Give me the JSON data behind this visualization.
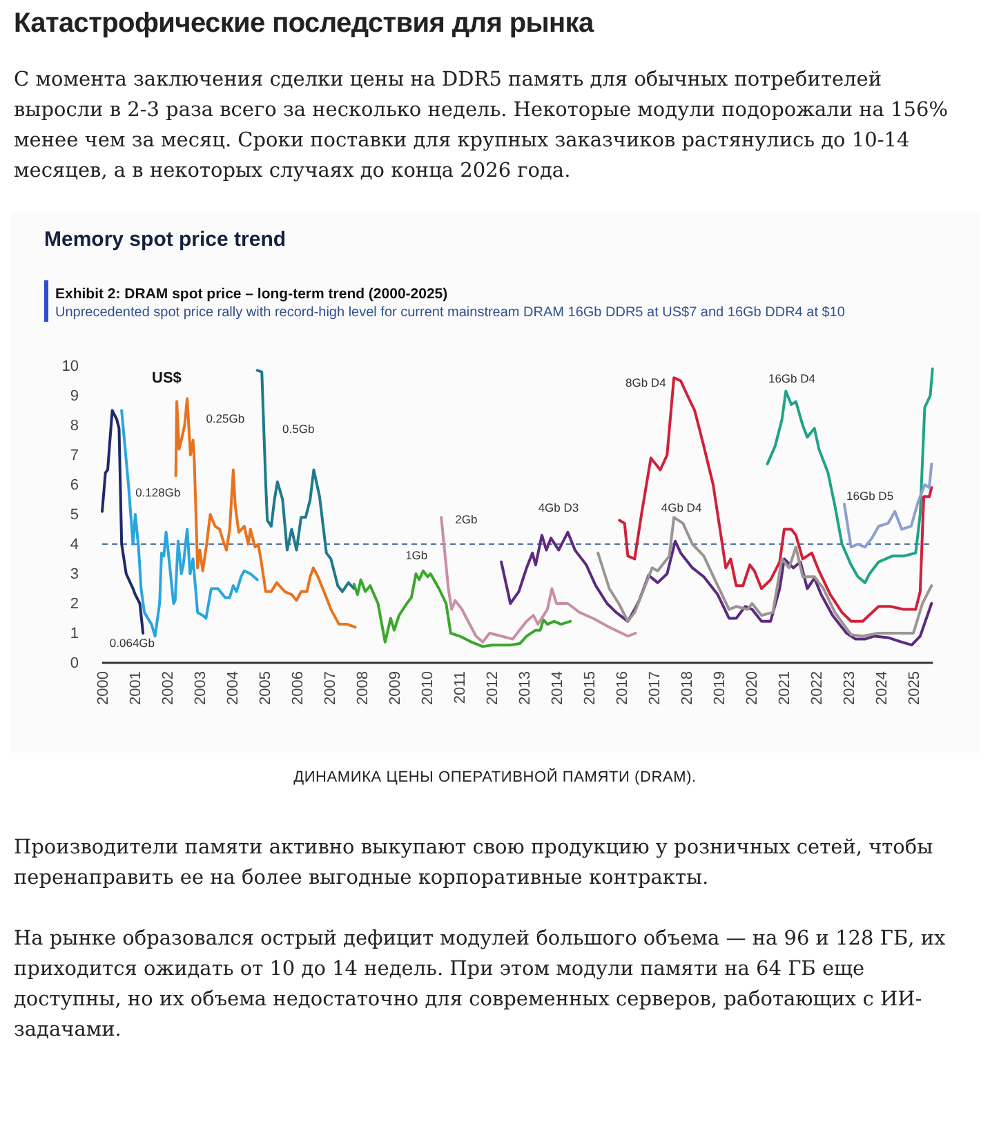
{
  "chart_data": {
    "type": "line",
    "title": "Exhibit 2: DRAM spot price – long-term trend (2000-2025)",
    "subtitle": "Unprecedented spot price rally with record-high level for current mainstream DRAM 16Gb DDR5 at US$7 and 16Gb DDR4 at $10",
    "ylabel": "US$",
    "annotations": [
      "Катастрофические последствия для рынка",
      "С момента заключения сделки цены на DDR5 память для обычных потребителей выросли в 2-3 раза всего за несколько недель. Некоторые модули подорожали на 156% менее чем за месяц. Сроки поставки для крупных заказчиков растянулись до 10-14 месяцев, а в некоторых случаях до конца 2026 года.",
      "Memory spot price trend",
      "ДИНАМИКА ЦЕНЫ ОПЕРАТИВНОЙ ПАМЯТИ (DRAM).",
      "Производители памяти активно выкупают свою продукцию у розничных сетей, чтобы перенаправить ее на более выгодные корпоративные контракты.",
      "На рынке образовался острый дефицит модулей большого объема — на 96 и 128 ГБ, их приходится ожидать от 10 до 14 недель. При этом модули памяти на 64 ГБ еще доступны, но их объема недостаточно для современных серверов, работающих с ИИ-задачами."
    ],
    "xlim": [
      2000,
      2025.6
    ],
    "xticks": [
      2000,
      2001,
      2002,
      2003,
      2004,
      2005,
      2006,
      2007,
      2008,
      2009,
      2010,
      2011,
      2012,
      2013,
      2014,
      2015,
      2016,
      2017,
      2018,
      2019,
      2020,
      2021,
      2022,
      2023,
      2024,
      2025
    ],
    "ylim": [
      0,
      10
    ],
    "yticks": [
      0,
      1,
      2,
      3,
      4,
      5,
      6,
      7,
      8,
      9,
      10
    ],
    "grid": false,
    "legend": false,
    "line_style": "solid",
    "marker": "none",
    "ref_lines": [
      {
        "axis": "y",
        "value": 4,
        "color": "#4a6fa5",
        "line_style": "dashed"
      }
    ],
    "series": [
      {
        "name": "0.064Gb",
        "color": "#1f2a6b",
        "x": [
          2000.0,
          2000.1,
          2000.17,
          2000.31,
          2000.45,
          2000.52,
          2000.6,
          2000.74,
          2000.95,
          2001.02,
          2001.16,
          2001.26
        ],
        "values": [
          5.1,
          6.4,
          6.5,
          8.5,
          8.2,
          7.9,
          4.0,
          3.0,
          2.5,
          2.3,
          2.0,
          1.0
        ]
      },
      {
        "name": "0.128Gb",
        "color": "#2aa6df",
        "x": [
          2000.6,
          2000.81,
          2000.95,
          2001.02,
          2001.12,
          2001.2,
          2001.3,
          2001.52,
          2001.63,
          2001.77,
          2001.83,
          2001.9,
          2001.97,
          2002.06,
          2002.2,
          2002.25,
          2002.34,
          2002.44,
          2002.5,
          2002.62,
          2002.71,
          2002.8,
          2002.94,
          2003.1,
          2003.2,
          2003.36,
          2003.57,
          2003.79,
          2003.93,
          2004.04,
          2004.14,
          2004.28,
          2004.38,
          2004.57,
          2004.78
        ],
        "values": [
          8.5,
          6.0,
          4.0,
          5.0,
          3.9,
          2.5,
          1.7,
          1.3,
          0.9,
          2.0,
          3.7,
          3.6,
          4.4,
          3.5,
          2.0,
          2.1,
          4.1,
          3.0,
          3.3,
          4.5,
          3.0,
          3.5,
          1.7,
          1.6,
          1.5,
          2.5,
          2.5,
          2.2,
          2.2,
          2.6,
          2.4,
          2.9,
          3.1,
          3.0,
          2.8
        ]
      },
      {
        "name": "0.25Gb",
        "color": "#e8731f",
        "x": [
          2002.27,
          2002.3,
          2002.37,
          2002.44,
          2002.54,
          2002.62,
          2002.72,
          2002.8,
          2002.84,
          2002.94,
          2003.01,
          2003.1,
          2003.22,
          2003.33,
          2003.48,
          2003.62,
          2003.76,
          2003.83,
          2003.93,
          2004.04,
          2004.1,
          2004.21,
          2004.38,
          2004.5,
          2004.57,
          2004.71,
          2004.81,
          2004.89,
          2005.04,
          2005.21,
          2005.38,
          2005.63,
          2005.84,
          2005.99,
          2006.13,
          2006.31,
          2006.41,
          2006.51,
          2006.65,
          2006.91,
          2007.05,
          2007.3,
          2007.55,
          2007.8
        ],
        "values": [
          6.3,
          8.8,
          7.2,
          7.5,
          8.0,
          8.9,
          7.0,
          7.5,
          6.8,
          3.2,
          3.8,
          3.1,
          4.0,
          5.0,
          4.6,
          4.5,
          4.0,
          3.8,
          4.5,
          6.5,
          5.3,
          4.4,
          4.6,
          4.0,
          4.5,
          3.9,
          4.0,
          3.5,
          2.4,
          2.4,
          2.7,
          2.4,
          2.3,
          2.1,
          2.4,
          2.4,
          2.9,
          3.2,
          2.9,
          2.2,
          1.8,
          1.3,
          1.3,
          1.2
        ]
      },
      {
        "name": "0.5Gb",
        "color": "#1f7a8c",
        "x": [
          2004.78,
          2004.92,
          2005.04,
          2005.09,
          2005.21,
          2005.31,
          2005.4,
          2005.56,
          2005.7,
          2005.84,
          2005.99,
          2006.13,
          2006.27,
          2006.41,
          2006.52,
          2006.7,
          2006.91,
          2007.05,
          2007.26,
          2007.4,
          2007.59,
          2007.76
        ],
        "values": [
          9.85,
          9.8,
          6.05,
          4.8,
          4.6,
          5.5,
          6.1,
          5.5,
          3.8,
          4.5,
          3.8,
          4.9,
          4.9,
          5.5,
          6.5,
          5.6,
          3.7,
          3.5,
          2.6,
          2.4,
          2.7,
          2.5
        ]
      },
      {
        "name": "1Gb",
        "color": "#3aa82b",
        "x": [
          2007.76,
          2007.87,
          2007.97,
          2008.11,
          2008.26,
          2008.5,
          2008.72,
          2008.89,
          2009.0,
          2009.15,
          2009.39,
          2009.53,
          2009.67,
          2009.77,
          2009.89,
          2010.03,
          2010.12,
          2010.38,
          2010.6,
          2010.74,
          2011.02,
          2011.38,
          2011.73,
          2012.01,
          2012.58,
          2012.87,
          2013.08,
          2013.36,
          2013.5,
          2013.6,
          2013.72,
          2013.93,
          2014.14,
          2014.43
        ],
        "values": [
          2.65,
          2.3,
          2.8,
          2.4,
          2.6,
          2.0,
          0.7,
          1.5,
          1.1,
          1.6,
          2.0,
          2.2,
          3.0,
          2.8,
          3.1,
          2.9,
          3.0,
          2.5,
          2.0,
          1.0,
          0.9,
          0.7,
          0.55,
          0.6,
          0.6,
          0.65,
          0.9,
          1.1,
          1.1,
          1.45,
          1.3,
          1.4,
          1.3,
          1.4
        ]
      },
      {
        "name": "2Gb",
        "color": "#c98fa6",
        "x": [
          2010.45,
          2010.67,
          2010.77,
          2010.88,
          2011.09,
          2011.23,
          2011.52,
          2011.73,
          2011.94,
          2012.3,
          2012.65,
          2013.08,
          2013.29,
          2013.43,
          2013.72,
          2013.86,
          2014.0,
          2014.35,
          2014.71,
          2015.13,
          2015.63,
          2016.2,
          2016.44
        ],
        "values": [
          4.9,
          2.5,
          1.8,
          2.1,
          1.8,
          1.5,
          0.9,
          0.7,
          1.0,
          0.9,
          0.8,
          1.4,
          1.6,
          1.3,
          1.8,
          2.5,
          2.0,
          2.0,
          1.7,
          1.5,
          1.2,
          0.9,
          1.0
        ]
      },
      {
        "name": "4Gb D3",
        "color": "#5b2a80",
        "x": [
          2012.3,
          2012.58,
          2012.84,
          2013.08,
          2013.26,
          2013.36,
          2013.55,
          2013.69,
          2013.83,
          2014.07,
          2014.35,
          2014.57,
          2014.92,
          2015.21,
          2015.56,
          2015.84,
          2016.2,
          2016.41,
          2016.55,
          2016.84,
          2017.12,
          2017.41,
          2017.66,
          2017.83,
          2018.19,
          2018.54,
          2018.97,
          2019.32,
          2019.54,
          2019.82,
          2020.03,
          2020.32,
          2020.6,
          2020.88,
          2021.02,
          2021.3,
          2021.52,
          2021.73,
          2021.95,
          2022.16,
          2022.51,
          2022.94,
          2023.22,
          2023.51,
          2023.79,
          2024.22,
          2024.64,
          2024.95,
          2025.21,
          2025.56
        ],
        "values": [
          3.4,
          2.0,
          2.4,
          3.2,
          3.7,
          3.3,
          4.3,
          3.8,
          4.2,
          3.8,
          4.4,
          3.8,
          3.3,
          2.6,
          2.0,
          1.7,
          1.4,
          1.8,
          2.1,
          2.95,
          2.7,
          3.0,
          4.1,
          3.7,
          3.2,
          2.9,
          2.3,
          1.5,
          1.5,
          1.9,
          1.8,
          1.4,
          1.4,
          2.5,
          3.5,
          3.2,
          3.4,
          2.5,
          2.85,
          2.3,
          1.6,
          1.0,
          0.8,
          0.8,
          0.9,
          0.85,
          0.7,
          0.6,
          0.9,
          2.0
        ]
      },
      {
        "name": "8Gb D4",
        "color": "#d0213a",
        "x": [
          2015.94,
          2016.1,
          2016.2,
          2016.41,
          2016.62,
          2016.91,
          2016.98,
          2017.2,
          2017.41,
          2017.62,
          2017.83,
          2018.04,
          2018.26,
          2018.54,
          2018.83,
          2019.04,
          2019.22,
          2019.37,
          2019.54,
          2019.75,
          2019.96,
          2020.1,
          2020.32,
          2020.6,
          2020.88,
          2021.02,
          2021.24,
          2021.38,
          2021.59,
          2021.87,
          2022.09,
          2022.44,
          2022.8,
          2023.08,
          2023.44,
          2023.93,
          2024.29,
          2024.71,
          2025.07,
          2025.21,
          2025.32,
          2025.49,
          2025.56
        ],
        "values": [
          4.8,
          4.7,
          3.6,
          3.5,
          5.0,
          6.9,
          6.8,
          6.5,
          7.0,
          9.6,
          9.5,
          9.0,
          8.5,
          7.3,
          6.0,
          4.5,
          3.2,
          3.5,
          2.6,
          2.6,
          3.3,
          3.1,
          2.5,
          2.8,
          3.4,
          4.5,
          4.5,
          4.3,
          3.5,
          3.7,
          3.1,
          2.3,
          1.7,
          1.4,
          1.4,
          1.9,
          1.9,
          1.8,
          1.8,
          2.4,
          5.6,
          5.6,
          5.9
        ]
      },
      {
        "name": "4Gb D4",
        "color": "#9c9393",
        "x": [
          2015.28,
          2015.63,
          2015.92,
          2016.2,
          2016.41,
          2016.7,
          2016.95,
          2017.12,
          2017.48,
          2017.62,
          2017.9,
          2018.19,
          2018.54,
          2018.97,
          2019.32,
          2019.54,
          2019.89,
          2020.03,
          2020.32,
          2020.67,
          2020.95,
          2021.17,
          2021.38,
          2021.59,
          2021.95,
          2022.23,
          2022.58,
          2023.08,
          2023.44,
          2023.93,
          2024.5,
          2025.0,
          2025.28,
          2025.56
        ],
        "values": [
          3.7,
          2.5,
          2.0,
          1.4,
          1.7,
          2.5,
          3.2,
          3.1,
          3.6,
          4.9,
          4.7,
          4.0,
          3.6,
          2.6,
          1.8,
          1.9,
          1.8,
          2.0,
          1.6,
          1.7,
          3.5,
          3.2,
          3.9,
          2.9,
          2.9,
          2.5,
          1.7,
          0.95,
          0.9,
          1.0,
          1.0,
          1.0,
          2.0,
          2.6
        ]
      },
      {
        "name": "16Gb D4",
        "color": "#1fa487",
        "x": [
          2020.5,
          2020.74,
          2020.95,
          2021.07,
          2021.24,
          2021.38,
          2021.59,
          2021.73,
          2021.95,
          2022.09,
          2022.37,
          2022.58,
          2022.8,
          2023.08,
          2023.29,
          2023.51,
          2023.65,
          2023.93,
          2024.36,
          2024.71,
          2025.07,
          2025.21,
          2025.35,
          2025.52,
          2025.59
        ],
        "values": [
          6.7,
          7.3,
          8.2,
          9.15,
          8.7,
          8.8,
          8.0,
          7.6,
          7.9,
          7.2,
          6.4,
          5.3,
          4.0,
          3.3,
          2.9,
          2.7,
          3.0,
          3.4,
          3.6,
          3.6,
          3.7,
          5.0,
          8.6,
          9.0,
          9.9
        ]
      },
      {
        "name": "16Gb D5",
        "color": "#8c9fd1",
        "x": [
          2022.87,
          2023.08,
          2023.29,
          2023.51,
          2023.72,
          2023.93,
          2024.22,
          2024.43,
          2024.64,
          2024.93,
          2025.14,
          2025.35,
          2025.49,
          2025.56
        ],
        "values": [
          5.35,
          3.9,
          4.0,
          3.9,
          4.2,
          4.6,
          4.7,
          5.1,
          4.5,
          4.6,
          5.4,
          6.0,
          5.9,
          6.7
        ]
      }
    ]
  }
}
